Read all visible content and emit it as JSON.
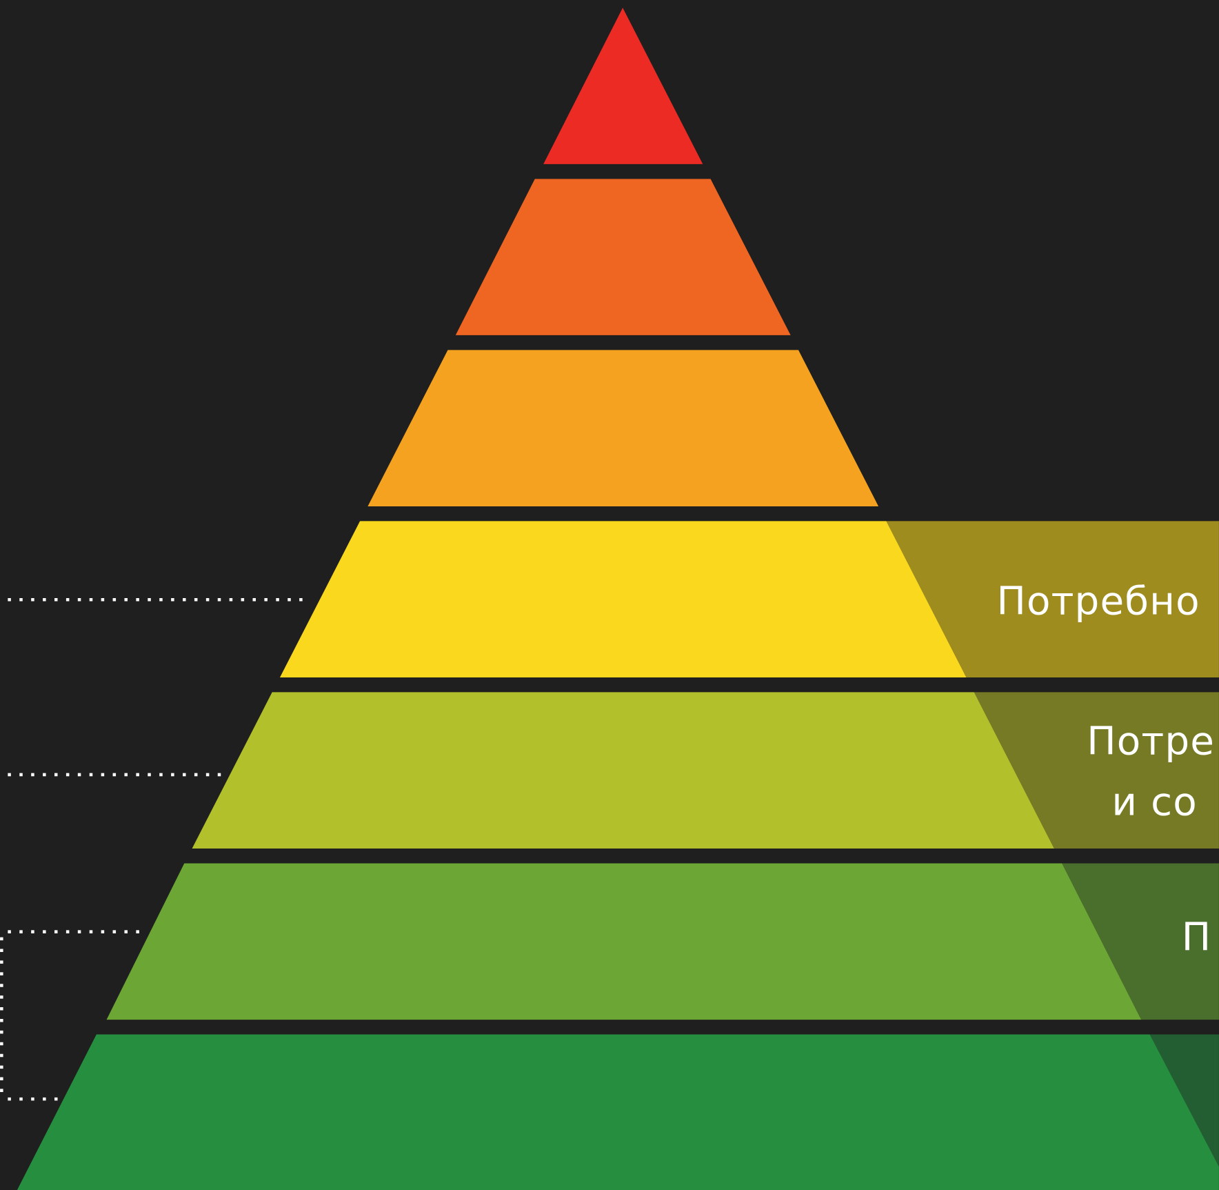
{
  "labels": [
    "Потребно",
    "Потре",
    "и со",
    "П"
  ]
}
